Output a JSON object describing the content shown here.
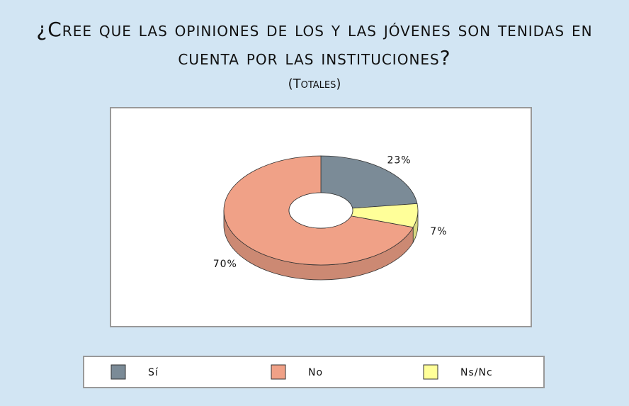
{
  "chart_data": {
    "type": "pie",
    "donut": true,
    "three_d": true,
    "title": "¿Cree que las opiniones de los y las jóvenes son tenidas en cuenta por las instituciones?",
    "subtitle": "(Totales)",
    "categories": [
      "Sí",
      "No",
      "Ns/Nc"
    ],
    "values": [
      23,
      70,
      7
    ],
    "value_labels": [
      "23%",
      "70%",
      "7%"
    ],
    "colors": [
      "#7b8b97",
      "#f0a187",
      "#ffff99"
    ],
    "legend": "bottom"
  }
}
